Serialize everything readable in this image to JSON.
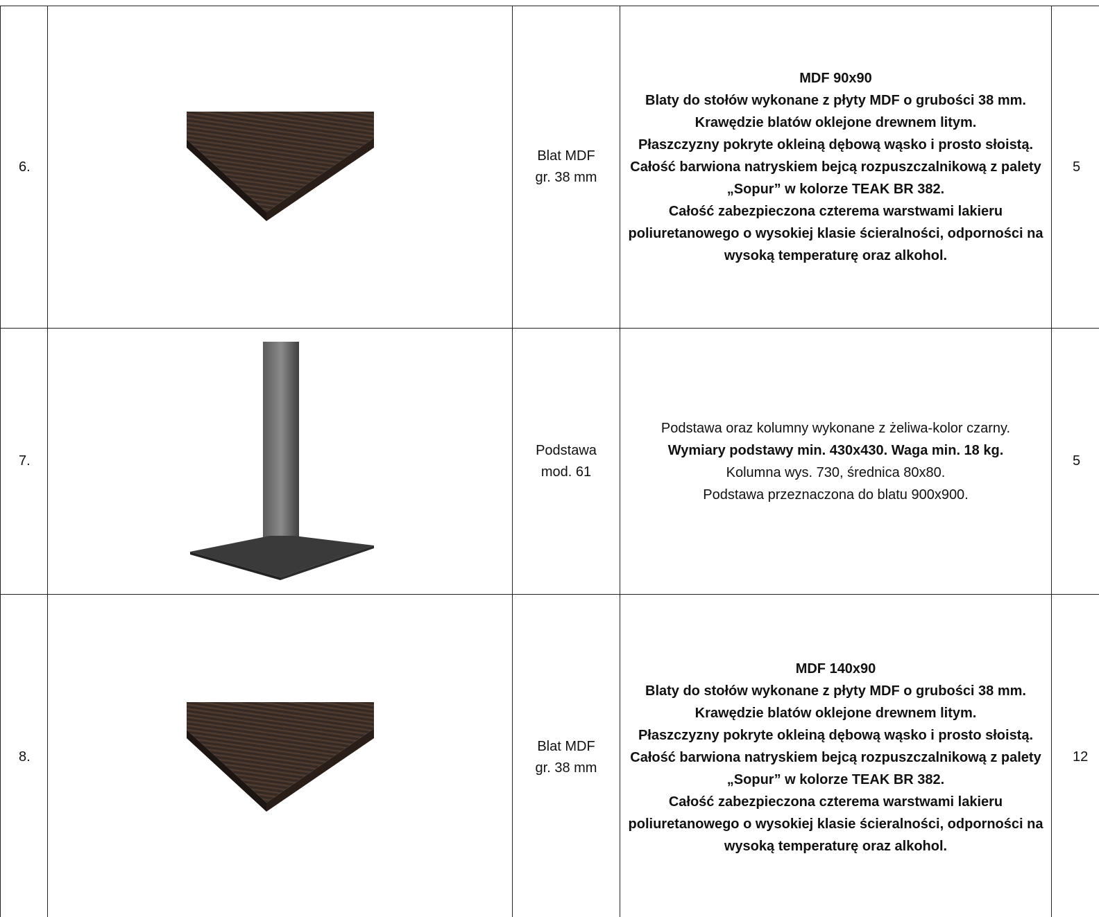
{
  "table": {
    "rows": [
      {
        "number": "6.",
        "image": "tabletop",
        "name": [
          "Blat MDF",
          "gr. 38 mm"
        ],
        "quantity": "5",
        "description": [
          {
            "text": "MDF 90x90",
            "bold": true
          },
          {
            "text": "Blaty do stołów wykonane z płyty MDF o grubości 38 mm.",
            "bold": true
          },
          {
            "text": "Krawędzie blatów oklejone drewnem litym.",
            "bold": true
          },
          {
            "text": "Płaszczyzny pokryte okleiną dębową wąsko i prosto słoistą.",
            "bold": true
          },
          {
            "text": "Całość barwiona natryskiem bejcą rozpuszczalnikową z palety",
            "bold": true
          },
          {
            "text": "„Sopur” w kolorze TEAK BR 382.",
            "bold": true
          },
          {
            "text": "Całość zabezpieczona czterema warstwami lakieru poliuretanowego o wysokiej klasie ścieralności, odporności na wysoką temperaturę oraz alkohol.",
            "bold": true
          }
        ]
      },
      {
        "number": "7.",
        "image": "pedestal",
        "name": [
          "Podstawa",
          "mod. 61"
        ],
        "quantity": "5",
        "description": [
          {
            "text": "Podstawa oraz kolumny wykonane z żeliwa-kolor czarny.",
            "bold": false
          },
          {
            "text": "Wymiary podstawy min. 430x430. Waga min. 18 kg.",
            "bold": true
          },
          {
            "text": "Kolumna wys. 730, średnica 80x80.",
            "bold": false
          },
          {
            "text": "Podstawa przeznaczona do blatu 900x900.",
            "bold": false
          }
        ]
      },
      {
        "number": "8.",
        "image": "tabletop",
        "name": [
          "Blat MDF",
          "gr. 38 mm"
        ],
        "quantity": "12",
        "description": [
          {
            "text": "MDF 140x90",
            "bold": true
          },
          {
            "text": "Blaty do stołów wykonane z płyty MDF o grubości 38 mm.",
            "bold": true
          },
          {
            "text": "Krawędzie blatów oklejone drewnem litym.",
            "bold": true
          },
          {
            "text": "Płaszczyzny pokryte okleiną dębową wąsko i prosto słoistą.",
            "bold": true
          },
          {
            "text": "Całość barwiona natryskiem bejcą rozpuszczalnikową z palety",
            "bold": true
          },
          {
            "text": "„Sopur” w kolorze TEAK BR 382.",
            "bold": true
          },
          {
            "text": "Całość zabezpieczona czterema warstwami lakieru poliuretanowego o wysokiej klasie ścieralności, odporności na wysoką temperaturę oraz alkohol.",
            "bold": true
          }
        ]
      }
    ]
  }
}
